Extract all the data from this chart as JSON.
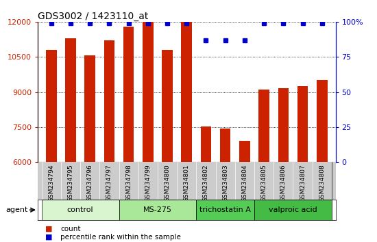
{
  "title": "GDS3002 / 1423110_at",
  "samples": [
    "GSM234794",
    "GSM234795",
    "GSM234796",
    "GSM234797",
    "GSM234798",
    "GSM234799",
    "GSM234800",
    "GSM234801",
    "GSM234802",
    "GSM234803",
    "GSM234804",
    "GSM234805",
    "GSM234806",
    "GSM234807",
    "GSM234808"
  ],
  "counts": [
    10800,
    11300,
    10550,
    11200,
    11800,
    12000,
    10800,
    12000,
    7530,
    7440,
    6900,
    9100,
    9150,
    9250,
    9500
  ],
  "percentile": [
    99,
    99,
    99,
    99,
    99,
    99,
    99,
    99,
    87,
    87,
    87,
    99,
    99,
    99,
    99
  ],
  "groups": [
    {
      "label": "control",
      "start": 0,
      "end": 3,
      "color": "#d8f5d0"
    },
    {
      "label": "MS-275",
      "start": 4,
      "end": 7,
      "color": "#a8e898"
    },
    {
      "label": "trichostatin A",
      "start": 8,
      "end": 10,
      "color": "#55cc55"
    },
    {
      "label": "valproic acid",
      "start": 11,
      "end": 14,
      "color": "#44bb44"
    }
  ],
  "bar_color": "#cc2200",
  "dot_color": "#0000cc",
  "ylim_left": [
    6000,
    12000
  ],
  "ylim_right": [
    0,
    100
  ],
  "yticks_left": [
    6000,
    7500,
    9000,
    10500,
    12000
  ],
  "yticks_right": [
    0,
    25,
    50,
    75,
    100
  ],
  "bg_color": "#ffffff",
  "bar_width": 0.55,
  "agent_label": "agent"
}
